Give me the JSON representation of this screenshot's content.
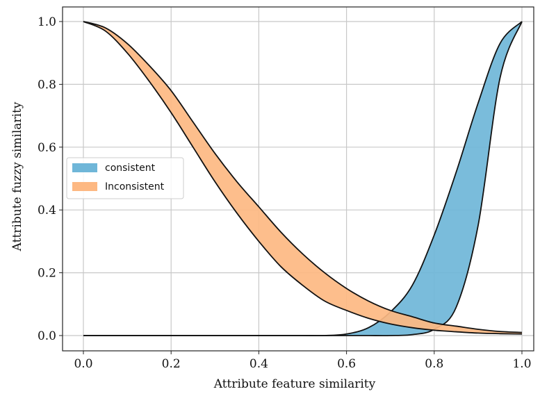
{
  "chart_data": {
    "type": "area",
    "title": "",
    "xlabel": "Attribute feature similarity",
    "ylabel": "Attribute fuzzy similarity",
    "xlim": [
      -0.05,
      1.0
    ],
    "ylim": [
      -0.03,
      1.05
    ],
    "xticks": [
      0.0,
      0.2,
      0.4,
      0.6,
      0.8,
      1.0
    ],
    "xtick_labels": [
      "0.0",
      "0.2",
      "0.4",
      "0.6",
      "0.8",
      "1.0"
    ],
    "yticks": [
      0.0,
      0.2,
      0.4,
      0.6,
      0.8,
      1.0
    ],
    "ytick_labels": [
      "0.0",
      "0.2",
      "0.4",
      "0.6",
      "0.8",
      "1.0"
    ],
    "grid": true,
    "legend_position": "center-left",
    "x": [
      0.0,
      0.05,
      0.1,
      0.15,
      0.2,
      0.25,
      0.3,
      0.35,
      0.4,
      0.45,
      0.5,
      0.55,
      0.6,
      0.65,
      0.7,
      0.75,
      0.8,
      0.85,
      0.9,
      0.95,
      1.0
    ],
    "series": [
      {
        "name": "consistent",
        "color": "#6fb6d8",
        "upper": [
          0.0,
          0.0,
          0.0,
          0.0,
          0.0,
          0.0,
          0.0,
          0.0,
          0.0,
          0.0,
          0.0,
          0.0,
          0.005,
          0.025,
          0.075,
          0.16,
          0.32,
          0.52,
          0.74,
          0.93,
          1.0
        ],
        "lower": [
          0.0,
          0.0,
          0.0,
          0.0,
          0.0,
          0.0,
          0.0,
          0.0,
          0.0,
          0.0,
          0.0,
          0.0,
          0.0,
          0.0,
          0.0,
          0.003,
          0.02,
          0.09,
          0.35,
          0.82,
          1.0
        ]
      },
      {
        "name": "Inconsistent",
        "color": "#fdb882",
        "upper": [
          1.0,
          0.98,
          0.93,
          0.86,
          0.78,
          0.68,
          0.58,
          0.49,
          0.41,
          0.33,
          0.26,
          0.2,
          0.15,
          0.11,
          0.08,
          0.06,
          0.04,
          0.03,
          0.02,
          0.013,
          0.01
        ],
        "lower": [
          1.0,
          0.97,
          0.9,
          0.81,
          0.71,
          0.6,
          0.49,
          0.39,
          0.3,
          0.22,
          0.16,
          0.11,
          0.08,
          0.055,
          0.037,
          0.025,
          0.017,
          0.012,
          0.008,
          0.006,
          0.005
        ]
      }
    ]
  }
}
